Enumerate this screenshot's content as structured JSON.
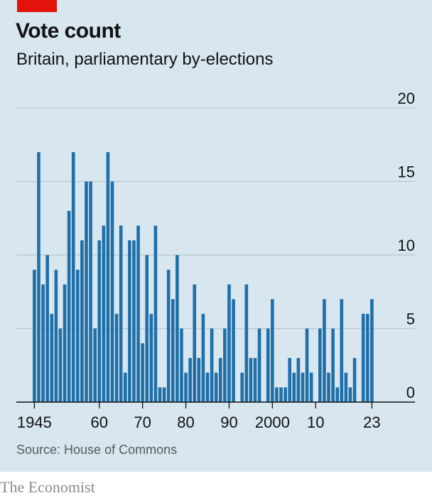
{
  "title": "Vote count",
  "subtitle": "Britain, parliamentary by-elections",
  "source": "Source: House of Commons",
  "brand": "The Economist",
  "colors": {
    "bar": "#1f6fa8",
    "background": "#d7e6ef",
    "accent": "#e3120b",
    "grid": "#b9c6cf"
  },
  "chart_data": {
    "type": "bar",
    "xlabel": "",
    "ylabel": "",
    "ylim": [
      0,
      20
    ],
    "yticks": [
      0,
      5,
      10,
      15,
      20
    ],
    "xtick_labels": [
      {
        "year": 1945,
        "label": "1945"
      },
      {
        "year": 1960,
        "label": "60"
      },
      {
        "year": 1970,
        "label": "70"
      },
      {
        "year": 1980,
        "label": "80"
      },
      {
        "year": 1990,
        "label": "90"
      },
      {
        "year": 2000,
        "label": "2000"
      },
      {
        "year": 2010,
        "label": "10"
      },
      {
        "year": 2023,
        "label": "23"
      }
    ],
    "grid": true,
    "categories": [
      1945,
      1946,
      1947,
      1948,
      1949,
      1950,
      1951,
      1952,
      1953,
      1954,
      1955,
      1956,
      1957,
      1958,
      1959,
      1960,
      1961,
      1962,
      1963,
      1964,
      1965,
      1966,
      1967,
      1968,
      1969,
      1970,
      1971,
      1972,
      1973,
      1974,
      1975,
      1976,
      1977,
      1978,
      1979,
      1980,
      1981,
      1982,
      1983,
      1984,
      1985,
      1986,
      1987,
      1988,
      1989,
      1990,
      1991,
      1992,
      1993,
      1994,
      1995,
      1996,
      1997,
      1998,
      1999,
      2000,
      2001,
      2002,
      2003,
      2004,
      2005,
      2006,
      2007,
      2008,
      2009,
      2010,
      2011,
      2012,
      2013,
      2014,
      2015,
      2016,
      2017,
      2018,
      2019,
      2020,
      2021,
      2022,
      2023
    ],
    "values": [
      9,
      17,
      8,
      10,
      6,
      9,
      5,
      8,
      13,
      17,
      9,
      11,
      15,
      15,
      5,
      11,
      12,
      17,
      15,
      6,
      12,
      2,
      11,
      11,
      12,
      4,
      10,
      6,
      12,
      1,
      1,
      9,
      7,
      10,
      5,
      2,
      3,
      8,
      3,
      6,
      2,
      5,
      2,
      3,
      5,
      8,
      7,
      0,
      2,
      8,
      3,
      3,
      5,
      0,
      5,
      7,
      1,
      1,
      1,
      3,
      2,
      3,
      2,
      5,
      2,
      0,
      5,
      7,
      2,
      5,
      1,
      7,
      2,
      1,
      3,
      0,
      6,
      6,
      7
    ]
  }
}
